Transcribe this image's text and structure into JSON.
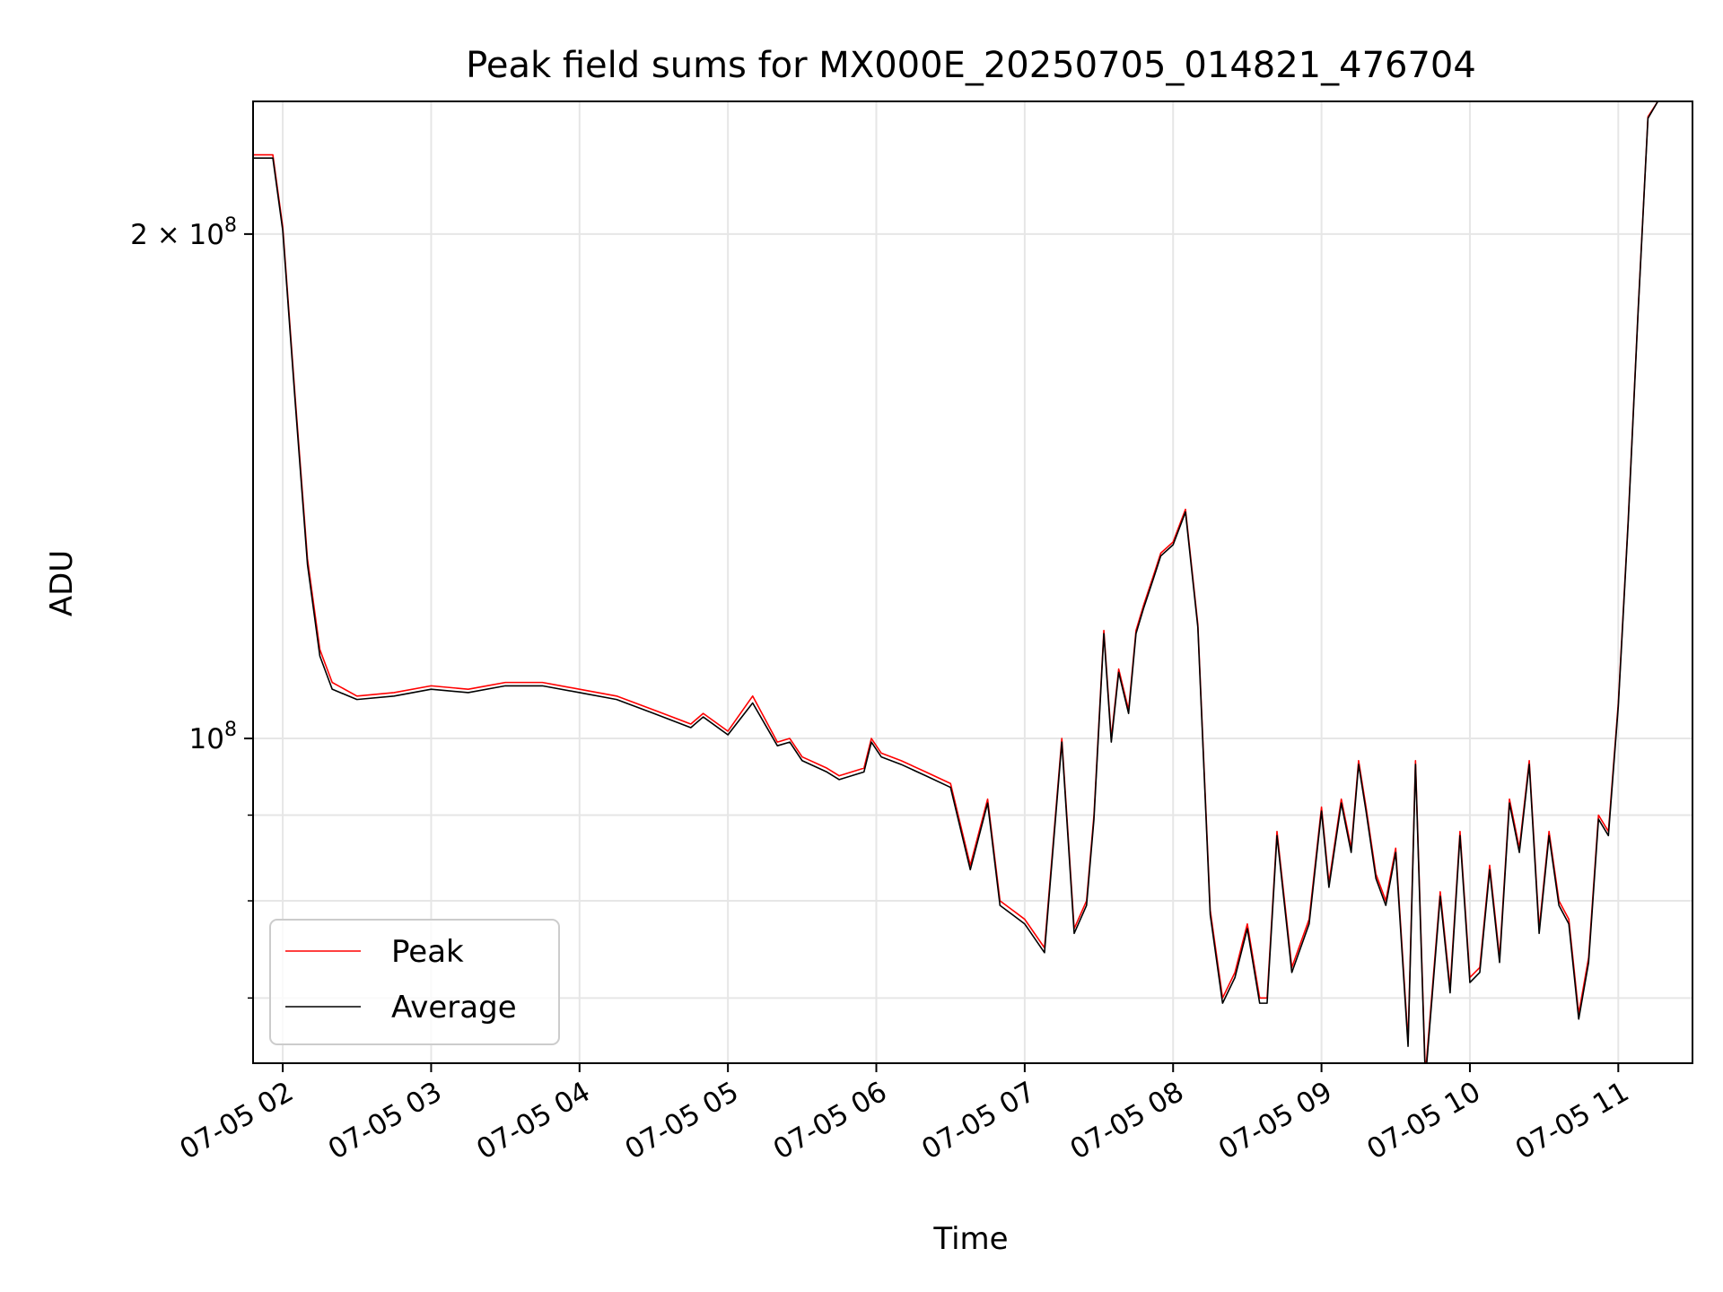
{
  "chart_data": {
    "type": "line",
    "title": "Peak field sums for MX000E_20250705_014821_476704",
    "xlabel": "Time",
    "ylabel": "ADU",
    "y_scale": "log",
    "xlim": [
      "07-05 01:48",
      "07-05 11:30"
    ],
    "ylim": [
      64000000,
      240000000
    ],
    "grid": true,
    "legend_position": "lower-left",
    "x_ticks": [
      "07-05 02",
      "07-05 03",
      "07-05 04",
      "07-05 05",
      "07-05 06",
      "07-05 07",
      "07-05 08",
      "07-05 09",
      "07-05 10",
      "07-05 11"
    ],
    "y_ticks_labeled": [
      {
        "value": 100000000,
        "label_base": "10",
        "label_exp": "8"
      },
      {
        "value": 200000000,
        "label_base": "2 × 10",
        "label_exp": "8"
      }
    ],
    "y_ticks_minor": [
      70000000,
      80000000,
      90000000
    ],
    "series": [
      {
        "name": "Peak",
        "color": "#ff0000",
        "x": [
          "01:48",
          "01:56",
          "02:00",
          "02:05",
          "02:10",
          "02:15",
          "02:20",
          "02:30",
          "02:45",
          "03:00",
          "03:15",
          "03:30",
          "03:45",
          "04:00",
          "04:15",
          "04:30",
          "04:45",
          "04:50",
          "05:00",
          "05:10",
          "05:20",
          "05:25",
          "05:30",
          "05:40",
          "05:45",
          "05:55",
          "05:58",
          "06:02",
          "06:10",
          "06:20",
          "06:30",
          "06:38",
          "06:45",
          "06:50",
          "06:55",
          "07:00",
          "07:08",
          "07:15",
          "07:20",
          "07:25",
          "07:28",
          "07:32",
          "07:35",
          "07:38",
          "07:42",
          "07:45",
          "07:48",
          "07:52",
          "07:55",
          "08:00",
          "08:05",
          "08:10",
          "08:15",
          "08:20",
          "08:25",
          "08:30",
          "08:35",
          "08:38",
          "08:42",
          "08:48",
          "08:55",
          "09:00",
          "09:03",
          "09:08",
          "09:12",
          "09:15",
          "09:18",
          "09:22",
          "09:26",
          "09:30",
          "09:35",
          "09:38",
          "09:42",
          "09:48",
          "09:52",
          "09:56",
          "10:00",
          "10:04",
          "10:08",
          "10:12",
          "10:16",
          "10:20",
          "10:24",
          "10:28",
          "10:32",
          "10:36",
          "10:40",
          "10:44",
          "10:48",
          "10:52",
          "10:56",
          "11:00",
          "11:04",
          "11:08",
          "11:12",
          "11:16",
          "11:20",
          "11:25",
          "11:30"
        ],
        "y": [
          223000000,
          223000000,
          202000000,
          160000000,
          128000000,
          113000000,
          108000000,
          106000000,
          106500000,
          107500000,
          107000000,
          108000000,
          108000000,
          107000000,
          106000000,
          104000000,
          102000000,
          103500000,
          101000000,
          106000000,
          99500000,
          100000000,
          97500000,
          96000000,
          95000000,
          96000000,
          100000000,
          98000000,
          97000000,
          95500000,
          94000000,
          84000000,
          92000000,
          80000000,
          79000000,
          78000000,
          75000000,
          100000000,
          77000000,
          80000000,
          90000000,
          116000000,
          100000000,
          110000000,
          104000000,
          116000000,
          120000000,
          125000000,
          129000000,
          131000000,
          137000000,
          117000000,
          79000000,
          70000000,
          72500000,
          77500000,
          70000000,
          70000000,
          88000000,
          73000000,
          78000000,
          91000000,
          82000000,
          92000000,
          86000000,
          97000000,
          91000000,
          83000000,
          80000000,
          86000000,
          66000000,
          97000000,
          63000000,
          81000000,
          71000000,
          88000000,
          72000000,
          73000000,
          84000000,
          74000000,
          92000000,
          86000000,
          97000000,
          77000000,
          88000000,
          80000000,
          78000000,
          68500000,
          74000000,
          90000000,
          88000000,
          105000000,
          135000000,
          180000000,
          235000000,
          240000000,
          240000000,
          240000000,
          240000000
        ]
      },
      {
        "name": "Average",
        "color": "#000000",
        "x": [
          "01:48",
          "01:56",
          "02:00",
          "02:05",
          "02:10",
          "02:15",
          "02:20",
          "02:30",
          "02:45",
          "03:00",
          "03:15",
          "03:30",
          "03:45",
          "04:00",
          "04:15",
          "04:30",
          "04:45",
          "04:50",
          "05:00",
          "05:10",
          "05:20",
          "05:25",
          "05:30",
          "05:40",
          "05:45",
          "05:55",
          "05:58",
          "06:02",
          "06:10",
          "06:20",
          "06:30",
          "06:38",
          "06:45",
          "06:50",
          "06:55",
          "07:00",
          "07:08",
          "07:15",
          "07:20",
          "07:25",
          "07:28",
          "07:32",
          "07:35",
          "07:38",
          "07:42",
          "07:45",
          "07:48",
          "07:52",
          "07:55",
          "08:00",
          "08:05",
          "08:10",
          "08:15",
          "08:20",
          "08:25",
          "08:30",
          "08:35",
          "08:38",
          "08:42",
          "08:48",
          "08:55",
          "09:00",
          "09:03",
          "09:08",
          "09:12",
          "09:15",
          "09:18",
          "09:22",
          "09:26",
          "09:30",
          "09:35",
          "09:38",
          "09:42",
          "09:48",
          "09:52",
          "09:56",
          "10:00",
          "10:04",
          "10:08",
          "10:12",
          "10:16",
          "10:20",
          "10:24",
          "10:28",
          "10:32",
          "10:36",
          "10:40",
          "10:44",
          "10:48",
          "10:52",
          "10:56",
          "11:00",
          "11:04",
          "11:08",
          "11:12",
          "11:16",
          "11:20",
          "11:25",
          "11:30"
        ],
        "y": [
          222000000,
          222000000,
          201000000,
          159000000,
          127000000,
          112000000,
          107000000,
          105500000,
          106000000,
          107000000,
          106500000,
          107500000,
          107500000,
          106500000,
          105500000,
          103500000,
          101500000,
          103000000,
          100500000,
          105000000,
          99000000,
          99500000,
          97000000,
          95500000,
          94500000,
          95500000,
          99500000,
          97500000,
          96500000,
          95000000,
          93500000,
          83500000,
          91500000,
          79500000,
          78500000,
          77500000,
          74500000,
          99500000,
          76500000,
          79500000,
          89500000,
          115500000,
          99500000,
          109500000,
          103500000,
          115500000,
          119500000,
          124500000,
          128500000,
          130500000,
          136500000,
          116500000,
          78500000,
          69500000,
          72000000,
          77000000,
          69500000,
          69500000,
          87500000,
          72500000,
          77500000,
          90500000,
          81500000,
          91500000,
          85500000,
          96500000,
          90500000,
          82500000,
          79500000,
          85500000,
          65500000,
          96500000,
          62500000,
          80500000,
          70500000,
          87500000,
          71500000,
          72500000,
          83500000,
          73500000,
          91500000,
          85500000,
          96500000,
          76500000,
          87500000,
          79500000,
          77500000,
          68000000,
          73500000,
          89500000,
          87500000,
          104500000,
          134500000,
          179500000,
          234500000,
          240000000,
          240000000,
          240000000,
          240000000
        ]
      }
    ]
  }
}
